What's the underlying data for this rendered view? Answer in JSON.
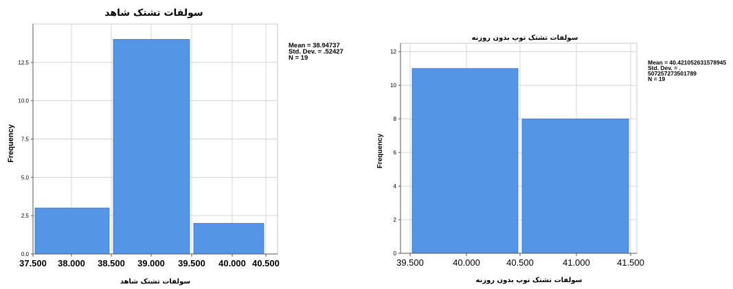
{
  "chart_data": [
    {
      "type": "bar",
      "title": "سولفات تشتک شاهد",
      "xlabel": "سولفات تشتک شاهد",
      "ylabel": "Frequency",
      "bins": [
        {
          "from": 37.5,
          "to": 38.5,
          "count": 3
        },
        {
          "from": 38.5,
          "to": 39.5,
          "count": 14
        },
        {
          "from": 39.5,
          "to": 40.5,
          "count": 2
        }
      ],
      "xlim": [
        37.5,
        40.5
      ],
      "ylim": [
        0,
        15
      ],
      "x_ticks": [
        "37.500",
        "38.000",
        "38.500",
        "39.000",
        "39.500",
        "40.000",
        "40.500"
      ],
      "y_ticks": [
        "0.0",
        "2.5",
        "5.0",
        "7.5",
        "10.0",
        "12.5"
      ],
      "stats": [
        "Mean = 38.94737",
        "Std. Dev. = .52427",
        "N = 19"
      ],
      "grid": true,
      "bar_color": "#5595e5"
    },
    {
      "type": "bar",
      "title": "سولفات تشتک توپ بدون روزنه",
      "xlabel": "سولفات تشتک توپ بدون روزنه",
      "ylabel": "Frequency",
      "bins": [
        {
          "from": 39.5,
          "to": 40.5,
          "count": 11
        },
        {
          "from": 40.5,
          "to": 41.5,
          "count": 8
        }
      ],
      "xlim": [
        39.5,
        41.5
      ],
      "ylim": [
        0,
        12.5
      ],
      "x_ticks": [
        "39.500",
        "40.000",
        "40.500",
        "41.000",
        "41.500"
      ],
      "y_ticks": [
        "0",
        "2",
        "4",
        "6",
        "8",
        "10",
        "12"
      ],
      "stats": [
        "Mean = 40.421052631578945",
        "Std. Dev. = .",
        "507257273501789",
        "N = 19"
      ],
      "grid": true,
      "bar_color": "#5595e5"
    }
  ]
}
